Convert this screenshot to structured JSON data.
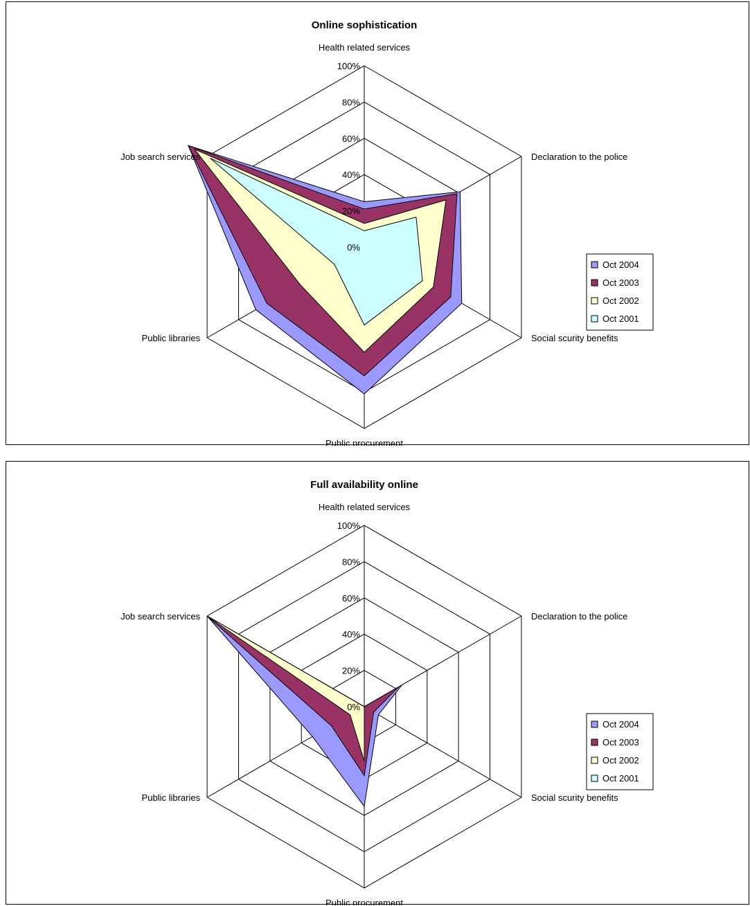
{
  "chart_data": [
    {
      "type": "radar",
      "title": "Online sophistication",
      "categories": [
        "Health related services",
        "Declaration to the police",
        "Social scurity benefits",
        "Public procurement",
        "Public libraries",
        "Job search services"
      ],
      "rticks": [
        "0%",
        "20%",
        "40%",
        "60%",
        "80%",
        "100%"
      ],
      "rlim": [
        0,
        100
      ],
      "grid": true,
      "legend": "right",
      "series": [
        {
          "name": "Oct 2004",
          "color": "#9999ff",
          "values": [
            25,
            61,
            62,
            81,
            69,
            112
          ]
        },
        {
          "name": "Oct 2003",
          "color": "#993366",
          "values": [
            21,
            59,
            55,
            71,
            62,
            112
          ]
        },
        {
          "name": "Oct 2002",
          "color": "#ffffcc",
          "values": [
            13,
            52,
            44,
            58,
            41,
            108
          ]
        },
        {
          "name": "Oct 2001",
          "color": "#ccffff",
          "values": [
            9,
            33,
            37,
            43,
            19,
            98
          ]
        }
      ]
    },
    {
      "type": "radar",
      "title": "Full availability online",
      "categories": [
        "Health related services",
        "Declaration to the police",
        "Social scurity benefits",
        "Public procurement",
        "Public libraries",
        "Job search services"
      ],
      "rticks": [
        "0%",
        "20%",
        "40%",
        "60%",
        "80%",
        "100%"
      ],
      "rlim": [
        0,
        100
      ],
      "grid": true,
      "legend": "right",
      "series": [
        {
          "name": "Oct 2004",
          "color": "#9999ff",
          "values": [
            0,
            24,
            9,
            55,
            33,
            100
          ]
        },
        {
          "name": "Oct 2003",
          "color": "#993366",
          "values": [
            0,
            22,
            6,
            38,
            21,
            100
          ]
        },
        {
          "name": "Oct 2002",
          "color": "#ffffcc",
          "values": [
            0,
            0,
            0,
            30,
            9,
            100
          ]
        },
        {
          "name": "Oct 2001",
          "color": "#ccffff",
          "values": [
            0,
            0,
            0,
            0,
            0,
            31
          ]
        }
      ]
    }
  ]
}
